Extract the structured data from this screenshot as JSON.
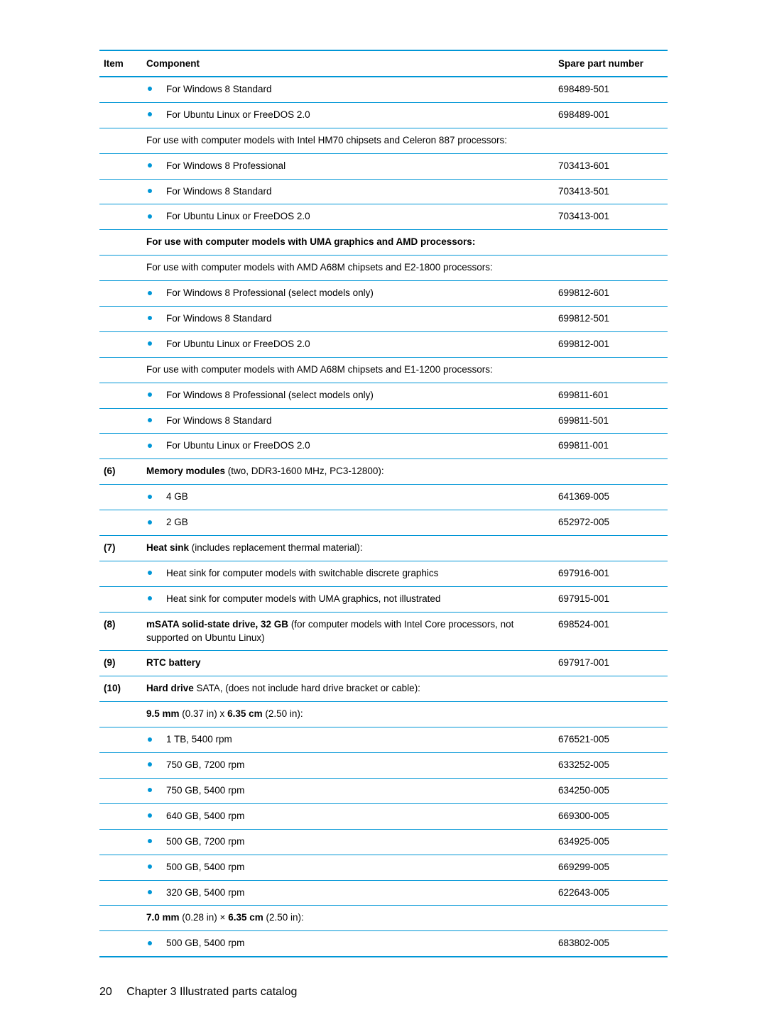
{
  "colors": {
    "rule": "#0096d6",
    "bullet": "#0096d6",
    "text": "#000000",
    "background": "#ffffff"
  },
  "header": {
    "item": "Item",
    "component": "Component",
    "spare": "Spare part number"
  },
  "rows": [
    {
      "item": "",
      "bullet": true,
      "text": "For Windows 8 Standard",
      "spare": "698489-501"
    },
    {
      "item": "",
      "bullet": true,
      "text": "For Ubuntu Linux or FreeDOS 2.0",
      "spare": "698489-001"
    },
    {
      "item": "",
      "bullet": false,
      "text": "For use with computer models with Intel HM70 chipsets and Celeron 887 processors:",
      "spare": ""
    },
    {
      "item": "",
      "bullet": true,
      "text": "For Windows 8 Professional",
      "spare": "703413-601"
    },
    {
      "item": "",
      "bullet": true,
      "text": "For Windows 8 Standard",
      "spare": "703413-501"
    },
    {
      "item": "",
      "bullet": true,
      "text": "For Ubuntu Linux or FreeDOS 2.0",
      "spare": "703413-001"
    },
    {
      "item": "",
      "bullet": false,
      "bold": true,
      "text": "For use with computer models with UMA graphics and AMD processors:",
      "spare": ""
    },
    {
      "item": "",
      "bullet": false,
      "text": "For use with computer models with AMD A68M chipsets and E2-1800 processors:",
      "spare": ""
    },
    {
      "item": "",
      "bullet": true,
      "text": "For Windows 8 Professional (select models only)",
      "spare": "699812-601"
    },
    {
      "item": "",
      "bullet": true,
      "text": "For Windows 8 Standard",
      "spare": "699812-501"
    },
    {
      "item": "",
      "bullet": true,
      "text": "For Ubuntu Linux or FreeDOS 2.0",
      "spare": "699812-001"
    },
    {
      "item": "",
      "bullet": false,
      "text": "For use with computer models with AMD A68M chipsets and E1-1200 processors:",
      "spare": ""
    },
    {
      "item": "",
      "bullet": true,
      "text": "For Windows 8 Professional (select models only)",
      "spare": "699811-601"
    },
    {
      "item": "",
      "bullet": true,
      "text": "For Windows 8 Standard",
      "spare": "699811-501"
    },
    {
      "item": "",
      "bullet": true,
      "text": "For Ubuntu Linux or FreeDOS 2.0",
      "spare": "699811-001"
    },
    {
      "item": "(6)",
      "bullet": false,
      "html": "<span class=\"bold\">Memory modules</span> (two, DDR3-1600 MHz, PC3-12800):",
      "spare": ""
    },
    {
      "item": "",
      "bullet": true,
      "text": "4 GB",
      "spare": "641369-005"
    },
    {
      "item": "",
      "bullet": true,
      "text": "2 GB",
      "spare": "652972-005"
    },
    {
      "item": "(7)",
      "bullet": false,
      "html": "<span class=\"bold\">Heat sink</span> (includes replacement thermal material):",
      "spare": ""
    },
    {
      "item": "",
      "bullet": true,
      "text": "Heat sink for computer models with switchable discrete graphics",
      "spare": "697916-001"
    },
    {
      "item": "",
      "bullet": true,
      "text": "Heat sink for computer models with UMA graphics, not illustrated",
      "spare": "697915-001"
    },
    {
      "item": "(8)",
      "bullet": false,
      "html": "<span class=\"bold\">mSATA solid-state drive, 32 GB</span> (for computer models with Intel Core processors, not supported on Ubuntu Linux)",
      "spare": "698524-001"
    },
    {
      "item": "(9)",
      "bullet": false,
      "html": "<span class=\"bold\">RTC battery</span>",
      "spare": "697917-001"
    },
    {
      "item": "(10)",
      "bullet": false,
      "html": "<span class=\"bold\">Hard drive</span> SATA, (does not include hard drive bracket or cable):",
      "spare": ""
    },
    {
      "item": "",
      "bullet": false,
      "html": "<span class=\"bold\">9.5 mm</span> (0.37 in) x <span class=\"bold\">6.35 cm</span> (2.50 in):",
      "spare": ""
    },
    {
      "item": "",
      "bullet": true,
      "text": "1 TB, 5400 rpm",
      "spare": "676521-005"
    },
    {
      "item": "",
      "bullet": true,
      "text": "750 GB, 7200 rpm",
      "spare": "633252-005"
    },
    {
      "item": "",
      "bullet": true,
      "text": "750 GB, 5400 rpm",
      "spare": "634250-005"
    },
    {
      "item": "",
      "bullet": true,
      "text": "640 GB, 5400 rpm",
      "spare": "669300-005"
    },
    {
      "item": "",
      "bullet": true,
      "text": "500 GB, 7200 rpm",
      "spare": "634925-005"
    },
    {
      "item": "",
      "bullet": true,
      "text": "500 GB, 5400 rpm",
      "spare": "669299-005"
    },
    {
      "item": "",
      "bullet": true,
      "text": "320 GB, 5400 rpm",
      "spare": "622643-005"
    },
    {
      "item": "",
      "bullet": false,
      "html": "<span class=\"bold\">7.0 mm</span> (0.28 in) × <span class=\"bold\">6.35 cm</span> (2.50 in):",
      "spare": ""
    },
    {
      "item": "",
      "bullet": true,
      "text": "500 GB, 5400 rpm",
      "spare": "683802-005",
      "last": true
    }
  ],
  "footer": {
    "page": "20",
    "chapter": "Chapter 3   Illustrated parts catalog"
  }
}
